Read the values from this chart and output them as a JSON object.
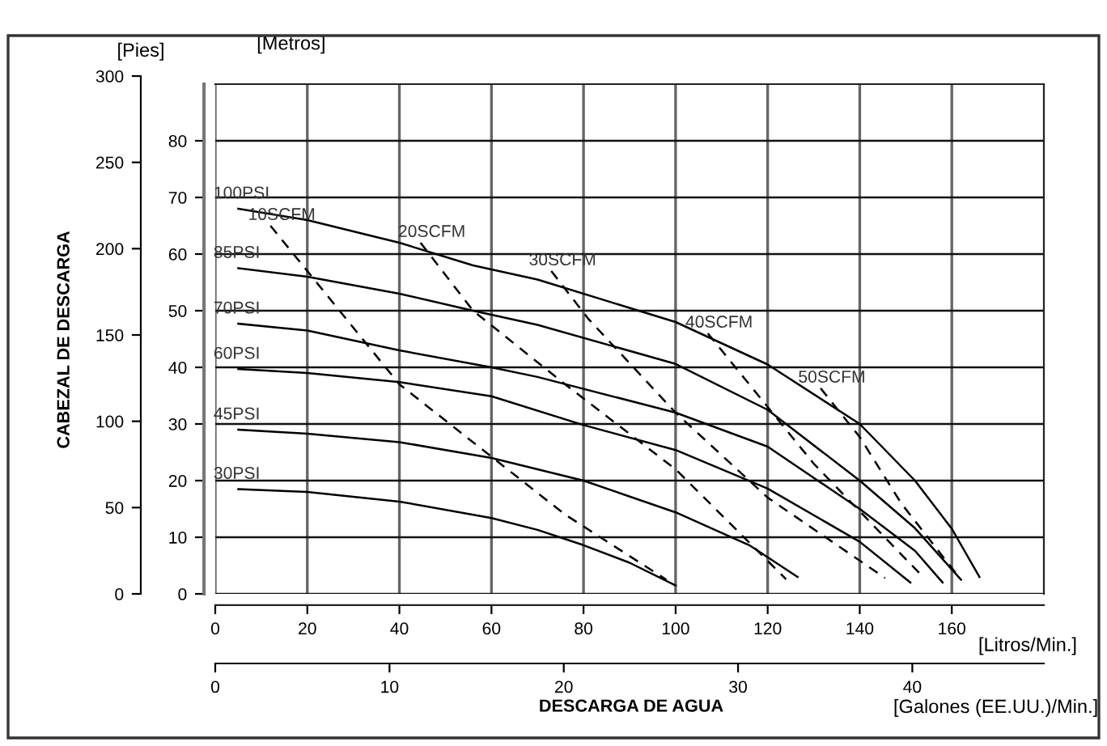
{
  "chart_data": {
    "type": "line",
    "xlabel": "[Litros/Min.]",
    "x2label": "[Galones (EE.UU.)/Min.]",
    "ylabel": "[Metros]",
    "y2label": "[Pies]",
    "annotations": [
      "CABEZAL DE DESCARGA",
      "DESCARGA DE AGUA"
    ],
    "xlim": [
      0,
      180
    ],
    "xticks": [
      0,
      20,
      40,
      60,
      80,
      100,
      120,
      140,
      160
    ],
    "x2lim": [
      0,
      47.55
    ],
    "x2ticks": [
      0,
      10,
      20,
      30,
      40
    ],
    "ylim": [
      0,
      90
    ],
    "yticks": [
      0,
      10,
      20,
      30,
      40,
      50,
      60,
      70,
      80
    ],
    "y2lim": [
      0,
      300
    ],
    "y2ticks": [
      0,
      50,
      100,
      150,
      200,
      250,
      300
    ],
    "grid": true,
    "legend": false,
    "marker": "none",
    "series": [
      {
        "name": "100PSI",
        "color": "#000000",
        "line_style": "solid",
        "x": [
          5,
          20,
          40,
          56,
          70,
          100,
          120,
          140,
          152,
          160,
          166
        ],
        "values": [
          68,
          66,
          62,
          58,
          55.5,
          48,
          40.5,
          30,
          20,
          11.5,
          3
        ]
      },
      {
        "name": "85PSI",
        "color": "#000000",
        "line_style": "solid",
        "x": [
          5,
          20,
          40,
          56,
          70,
          100,
          120,
          140,
          152,
          162
        ],
        "values": [
          57.5,
          56,
          53,
          50,
          47.5,
          40.6,
          32.5,
          20,
          11.6,
          2.5
        ]
      },
      {
        "name": "70PSI",
        "color": "#000000",
        "line_style": "solid",
        "x": [
          5,
          20,
          40,
          60,
          70,
          100,
          120,
          140,
          152,
          158
        ],
        "values": [
          47.7,
          46.5,
          43,
          40,
          38.3,
          32,
          26,
          15,
          7.6,
          2
        ]
      },
      {
        "name": "60PSI",
        "color": "#000000",
        "line_style": "solid",
        "x": [
          5,
          20,
          40,
          60,
          80,
          100,
          120,
          140,
          151
        ],
        "values": [
          39.7,
          39,
          37.4,
          34.9,
          29.8,
          25.4,
          18.6,
          9.2,
          2
        ]
      },
      {
        "name": "45PSI",
        "color": "#000000",
        "line_style": "solid",
        "x": [
          5,
          20,
          40,
          60,
          80,
          100,
          116,
          126.5
        ],
        "values": [
          29,
          28.3,
          26.8,
          24,
          20,
          14.4,
          8.6,
          3
        ]
      },
      {
        "name": "30PSI",
        "color": "#000000",
        "line_style": "solid",
        "x": [
          5,
          20,
          40,
          60,
          70,
          80,
          90,
          100
        ],
        "values": [
          18.5,
          18,
          16.3,
          13.4,
          11.3,
          8.6,
          5.5,
          1.5
        ]
      },
      {
        "name": "10SCFM",
        "color": "#000000",
        "line_style": "dashed",
        "x": [
          12,
          40,
          76,
          98
        ],
        "values": [
          65,
          37,
          14,
          2.5
        ]
      },
      {
        "name": "20SCFM",
        "color": "#000000",
        "line_style": "dashed",
        "x": [
          44.6,
          56,
          76,
          100,
          124
        ],
        "values": [
          62,
          50,
          37,
          22,
          2.6
        ]
      },
      {
        "name": "30SCFM",
        "color": "#000000",
        "line_style": "dashed",
        "x": [
          73,
          81,
          100,
          120,
          145.5
        ],
        "values": [
          57,
          48.6,
          32,
          17,
          2.8
        ]
      },
      {
        "name": "40SCFM",
        "color": "#000000",
        "line_style": "dashed",
        "x": [
          107,
          115,
          130,
          153.5
        ],
        "values": [
          46,
          38,
          23,
          3.2
        ]
      },
      {
        "name": "50SCFM",
        "color": "#000000",
        "line_style": "dashed",
        "x": [
          131.5,
          140,
          149,
          161.7
        ],
        "values": [
          36.3,
          27.7,
          16,
          2.8
        ]
      }
    ]
  }
}
